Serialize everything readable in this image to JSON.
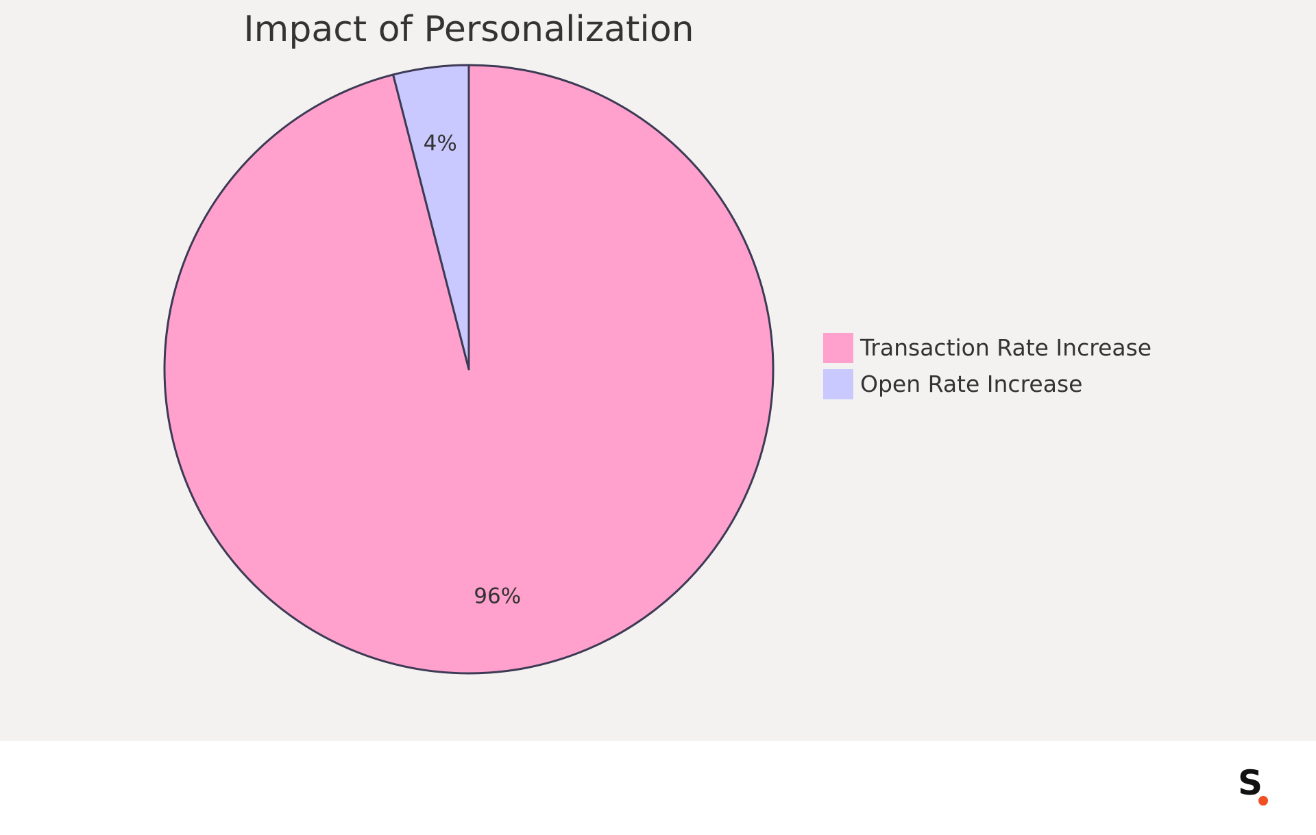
{
  "chart_data": {
    "type": "pie",
    "title": "Impact of Personalization",
    "slices": [
      {
        "label": "Transaction Rate Increase",
        "value": 96,
        "display": "96%",
        "color": "#ffa1cc"
      },
      {
        "label": "Open Rate Increase",
        "value": 4,
        "display": "4%",
        "color": "#c9c8ff"
      }
    ],
    "legend_position": "right",
    "outline_color": "#3d3a55"
  },
  "branding": {
    "logo_text": "S",
    "logo_dot_color": "#f04e23"
  }
}
